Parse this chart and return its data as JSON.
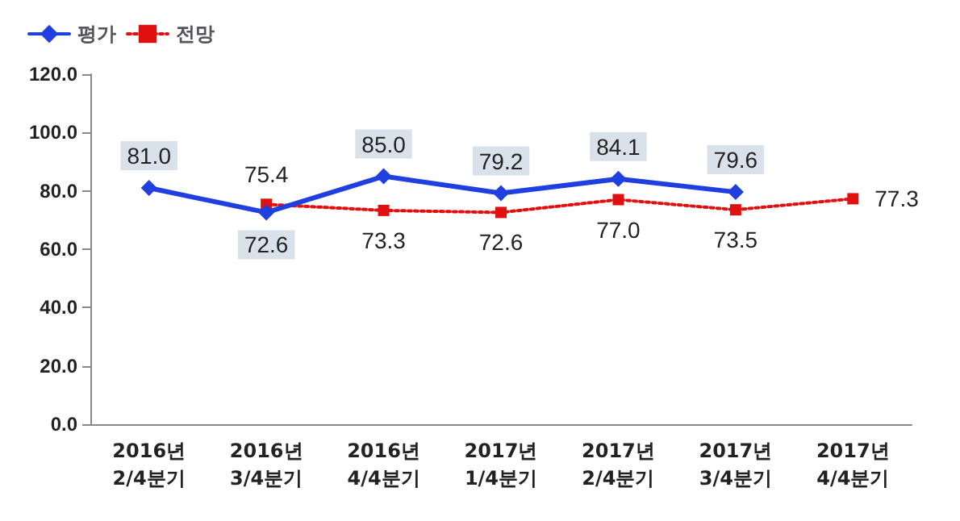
{
  "chart_data": {
    "type": "line",
    "categories": [
      "2016년\n2/4분기",
      "2016년\n3/4분기",
      "2016년\n4/4분기",
      "2017년\n1/4분기",
      "2017년\n2/4분기",
      "2017년\n3/4분기",
      "2017년\n4/4분기"
    ],
    "series": [
      {
        "name": "평가",
        "color": "#1f3fe0",
        "marker": "diamond",
        "line_style": "solid",
        "values": [
          81.0,
          72.6,
          85.0,
          79.2,
          84.1,
          79.6,
          null
        ],
        "value_labels": [
          "81.0",
          "72.6",
          "85.0",
          "79.2",
          "84.1",
          "79.6",
          null
        ]
      },
      {
        "name": "전망",
        "color": "#e01010",
        "marker": "square",
        "line_style": "dotted",
        "values": [
          null,
          75.4,
          73.3,
          72.6,
          77.0,
          73.5,
          77.3
        ],
        "value_labels": [
          null,
          "75.4",
          "73.3",
          "72.6",
          "77.0",
          "73.5",
          "77.3"
        ]
      }
    ],
    "ylim": [
      0,
      120
    ],
    "yticks": [
      {
        "value": 0,
        "label": "0.0"
      },
      {
        "value": 20,
        "label": "20.0"
      },
      {
        "value": 40,
        "label": "40.0"
      },
      {
        "value": 60,
        "label": "60.0"
      },
      {
        "value": 80,
        "label": "80.0"
      },
      {
        "value": 100,
        "label": "100.0"
      },
      {
        "value": 120,
        "label": "120.0"
      }
    ],
    "grid": false,
    "legend": "top left"
  }
}
